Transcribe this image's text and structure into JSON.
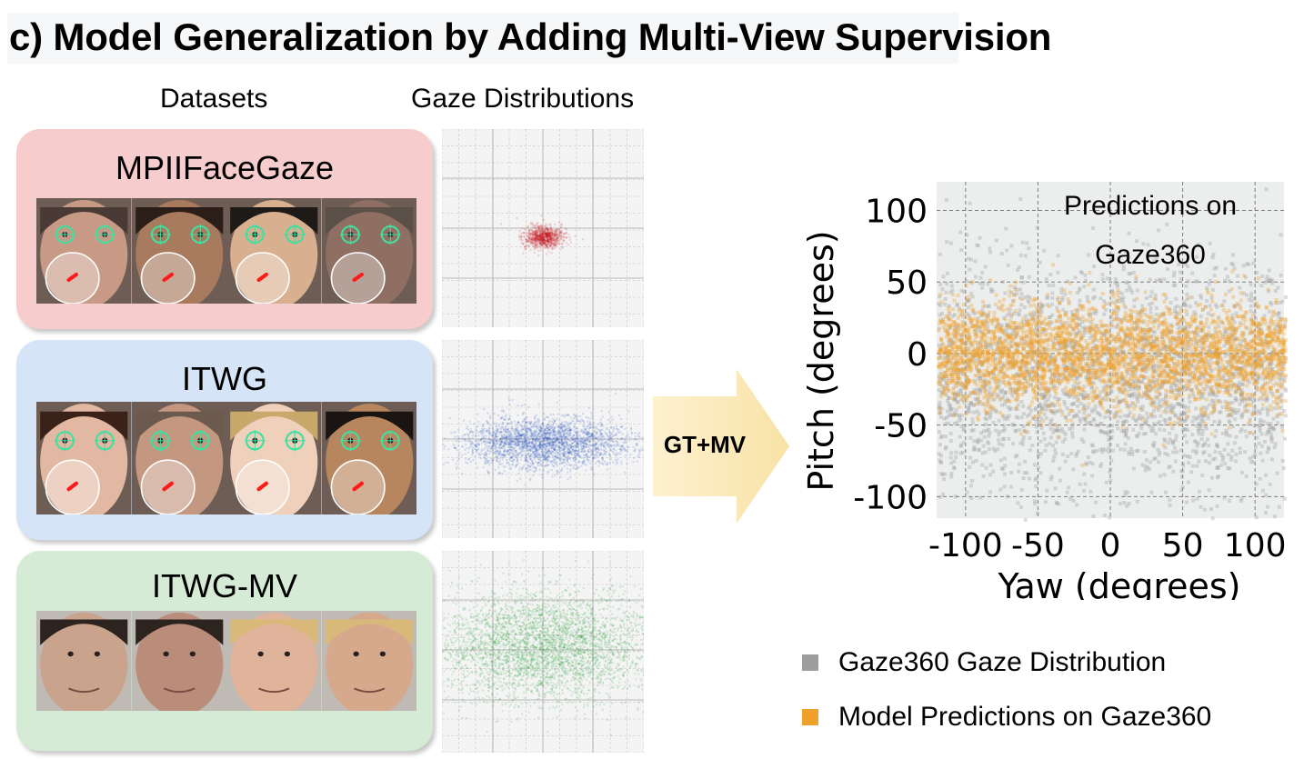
{
  "title": "c) Model Generalization by Adding Multi-View Supervision",
  "headers": {
    "datasets": "Datasets",
    "distributions": "Gaze Distributions"
  },
  "datasets": [
    {
      "name": "MPIIFaceGaze",
      "color": "#f6cdcc",
      "dist_color": "#c0161c"
    },
    {
      "name": "ITWG",
      "color": "#d5e4f6",
      "dist_color": "#1f4fbf"
    },
    {
      "name": "ITWG-MV",
      "color": "#d5ebd6",
      "dist_color": "#1a9a2a"
    }
  ],
  "arrow": {
    "label": "GT+MV",
    "color": "#fbe9b8"
  },
  "chart_data": {
    "type": "scatter",
    "title": "Predictions on Gaze360",
    "xlabel": "Yaw (degrees)",
    "ylabel": "Pitch (degrees)",
    "xlim": [
      -120,
      120
    ],
    "ylim": [
      -115,
      120
    ],
    "xticks": [
      -100,
      -50,
      0,
      50,
      100
    ],
    "yticks": [
      -100,
      -50,
      0,
      50,
      100
    ],
    "grid": true,
    "series": [
      {
        "name": "Gaze360 Gaze Distribution",
        "color": "#9e9e9e",
        "x_range": [
          -120,
          120
        ],
        "y_center": -15,
        "y_spread": 40
      },
      {
        "name": "Model Predictions on Gaze360",
        "color": "#f0a02c",
        "x_range": [
          -120,
          120
        ],
        "y_center": 0,
        "y_spread": 18
      }
    ],
    "legend": [
      {
        "label": "Gaze360 Gaze Distribution",
        "color": "#9e9e9e"
      },
      {
        "label": "Model Predictions on Gaze360",
        "color": "#f0a02c"
      }
    ]
  }
}
